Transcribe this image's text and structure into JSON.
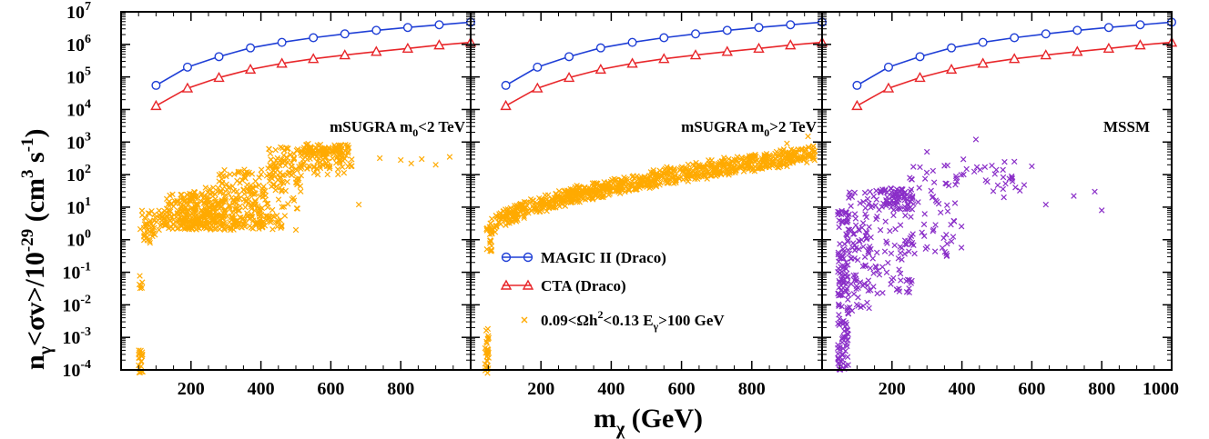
{
  "figure": {
    "xlabel_main": "m",
    "xlabel_sub": "χ",
    "xlabel_rest": " (GeV)",
    "ylabel": {
      "n": "n",
      "gamma": "γ",
      "sigmav": "<σv>/10",
      "exp29": "-29",
      "units_open": " (cm",
      "cm3": "3",
      "s": " s",
      "sm1": "-1",
      "close": ")"
    }
  },
  "y_ticks": [
    {
      "base": "10",
      "exp": "-4"
    },
    {
      "base": "10",
      "exp": "-3"
    },
    {
      "base": "10",
      "exp": "-2"
    },
    {
      "base": "10",
      "exp": "-1"
    },
    {
      "base": "10",
      "exp": "0"
    },
    {
      "base": "10",
      "exp": "1"
    },
    {
      "base": "10",
      "exp": "2"
    },
    {
      "base": "10",
      "exp": "3"
    },
    {
      "base": "10",
      "exp": "4"
    },
    {
      "base": "10",
      "exp": "5"
    },
    {
      "base": "10",
      "exp": "6"
    },
    {
      "base": "10",
      "exp": "7"
    }
  ],
  "legend": {
    "magic": "MAGIC II (Draco)",
    "cta": "CTA (Draco)",
    "scatter_a": "0.09<Ωh",
    "scatter_b": "2",
    "scatter_c": "<0.13  E",
    "scatter_d": "γ",
    "scatter_e": ">100 GeV"
  },
  "colors": {
    "magic": "#1f3fd6",
    "cta": "#e8262a",
    "msugra_points": "#ffaa00",
    "mssm_points": "#8a2ec8"
  },
  "chart_data": [
    {
      "type": "scatter",
      "panel": "mSUGRA m0<2 TeV",
      "label_a": "mSUGRA m",
      "label_b": "0",
      "label_c": "<2 TeV",
      "xlim": [
        0,
        1000
      ],
      "ylim": [
        0.0001,
        10000000
      ],
      "yscale": "log",
      "x_ticks": [
        "200",
        "400",
        "600",
        "800"
      ],
      "series": [
        {
          "name": "MAGIC II (Draco)",
          "marker": "circle",
          "x": [
            100,
            190,
            280,
            370,
            460,
            550,
            640,
            730,
            820,
            910,
            1000
          ],
          "y": [
            55000,
            200000,
            420000,
            780000,
            1150000,
            1600000,
            2100000,
            2700000,
            3300000,
            4000000,
            4800000
          ]
        },
        {
          "name": "CTA (Draco)",
          "marker": "triangle",
          "x": [
            100,
            190,
            280,
            370,
            460,
            550,
            640,
            730,
            820,
            910,
            1000
          ],
          "y": [
            13000,
            45000,
            95000,
            170000,
            260000,
            360000,
            470000,
            600000,
            750000,
            950000,
            1150000
          ]
        }
      ],
      "points_name": "0.09<Ωh2<0.13 Eγ>100 GeV",
      "point_clusters": [
        {
          "x": [
            50,
            62
          ],
          "y": [
            8e-05,
            0.0004
          ],
          "n": 20
        },
        {
          "x": [
            50,
            62
          ],
          "y": [
            0.02,
            0.1
          ],
          "n": 6
        },
        {
          "x": [
            55,
            100
          ],
          "y": [
            0.8,
            8
          ],
          "n": 40
        },
        {
          "x": [
            100,
            240
          ],
          "y": [
            2,
            8
          ],
          "n": 60
        },
        {
          "x": [
            120,
            220
          ],
          "y": [
            3,
            25
          ],
          "n": 80
        },
        {
          "x": [
            160,
            300
          ],
          "y": [
            2,
            30
          ],
          "n": 120
        },
        {
          "x": [
            220,
            470
          ],
          "y": [
            2,
            6
          ],
          "n": 140
        },
        {
          "x": [
            230,
            420
          ],
          "y": [
            6,
            40
          ],
          "n": 120
        },
        {
          "x": [
            280,
            520
          ],
          "y": [
            30,
            150
          ],
          "n": 100
        },
        {
          "x": [
            420,
            660
          ],
          "y": [
            150,
            700
          ],
          "n": 130
        },
        {
          "x": [
            500,
            650
          ],
          "y": [
            400,
            900
          ],
          "n": 60
        },
        {
          "x": [
            550,
            650
          ],
          "y": [
            100,
            300
          ],
          "n": 15
        },
        {
          "x": [
            420,
            520
          ],
          "y": [
            8,
            20
          ],
          "n": 10
        }
      ],
      "points_extra": [
        [
          680,
          12
        ],
        [
          740,
          320
        ],
        [
          800,
          280
        ],
        [
          830,
          220
        ],
        [
          860,
          300
        ],
        [
          900,
          200
        ],
        [
          940,
          350
        ],
        [
          500,
          2
        ]
      ]
    },
    {
      "type": "scatter",
      "panel": "mSUGRA m0>2 TeV",
      "label_a": "mSUGRA m",
      "label_b": "0",
      "label_c": ">2 TeV",
      "xlim": [
        0,
        1000
      ],
      "ylim": [
        0.0001,
        10000000
      ],
      "yscale": "log",
      "x_ticks": [
        "200",
        "400",
        "600",
        "800"
      ],
      "series": [
        {
          "name": "MAGIC II (Draco)",
          "marker": "circle",
          "x": [
            100,
            190,
            280,
            370,
            460,
            550,
            640,
            730,
            820,
            910,
            1000
          ],
          "y": [
            55000,
            200000,
            420000,
            780000,
            1150000,
            1600000,
            2100000,
            2700000,
            3300000,
            4000000,
            4800000
          ]
        },
        {
          "name": "CTA (Draco)",
          "marker": "triangle",
          "x": [
            100,
            190,
            280,
            370,
            460,
            550,
            640,
            730,
            820,
            910,
            1000
          ],
          "y": [
            13000,
            45000,
            95000,
            170000,
            260000,
            360000,
            470000,
            600000,
            750000,
            950000,
            1150000
          ]
        }
      ],
      "points_name": "0.09<Ωh2<0.13 Eγ>100 GeV",
      "points_band": {
        "x": [
          60,
          980
        ],
        "n": 900
      },
      "point_clusters": [
        {
          "x": [
            40,
            52
          ],
          "y": [
            8e-05,
            0.002
          ],
          "n": 30
        },
        {
          "x": [
            45,
            62
          ],
          "y": [
            0.3,
            4
          ],
          "n": 20
        }
      ],
      "points_extra": [
        [
          960,
          1500
        ],
        [
          900,
          900
        ]
      ]
    },
    {
      "type": "scatter",
      "panel": "MSSM",
      "label_a": "MSSM",
      "xlim": [
        0,
        1000
      ],
      "ylim": [
        0.0001,
        10000000
      ],
      "yscale": "log",
      "x_ticks": [
        "200",
        "400",
        "600",
        "800",
        "1000"
      ],
      "series": [
        {
          "name": "MAGIC II (Draco)",
          "marker": "circle",
          "x": [
            100,
            190,
            280,
            370,
            460,
            550,
            640,
            730,
            820,
            910,
            1000
          ],
          "y": [
            55000,
            200000,
            420000,
            780000,
            1150000,
            1600000,
            2100000,
            2700000,
            3300000,
            4000000,
            4800000
          ]
        },
        {
          "name": "CTA (Draco)",
          "marker": "triangle",
          "x": [
            100,
            190,
            280,
            370,
            460,
            550,
            640,
            730,
            820,
            910,
            1000
          ],
          "y": [
            13000,
            45000,
            95000,
            170000,
            260000,
            360000,
            470000,
            600000,
            750000,
            950000,
            1150000
          ]
        }
      ],
      "points_name": "0.09<Ωh2<0.13 Eγ>100 GeV",
      "point_clusters": [
        {
          "x": [
            45,
            75
          ],
          "y": [
            0.0001,
            8
          ],
          "n": 140
        },
        {
          "x": [
            70,
            140
          ],
          "y": [
            0.005,
            30
          ],
          "n": 80
        },
        {
          "x": [
            130,
            260
          ],
          "y": [
            0.02,
            40
          ],
          "n": 90
        },
        {
          "x": [
            150,
            260
          ],
          "y": [
            8,
            40
          ],
          "n": 60
        },
        {
          "x": [
            250,
            400
          ],
          "y": [
            0.3,
            200
          ],
          "n": 60
        },
        {
          "x": [
            350,
            580
          ],
          "y": [
            30,
            300
          ],
          "n": 30
        }
      ],
      "points_extra": [
        [
          440,
          1200
        ],
        [
          300,
          500
        ],
        [
          550,
          250
        ],
        [
          600,
          180
        ],
        [
          640,
          12
        ],
        [
          720,
          22
        ],
        [
          780,
          30
        ],
        [
          800,
          8
        ],
        [
          520,
          20
        ]
      ]
    }
  ]
}
